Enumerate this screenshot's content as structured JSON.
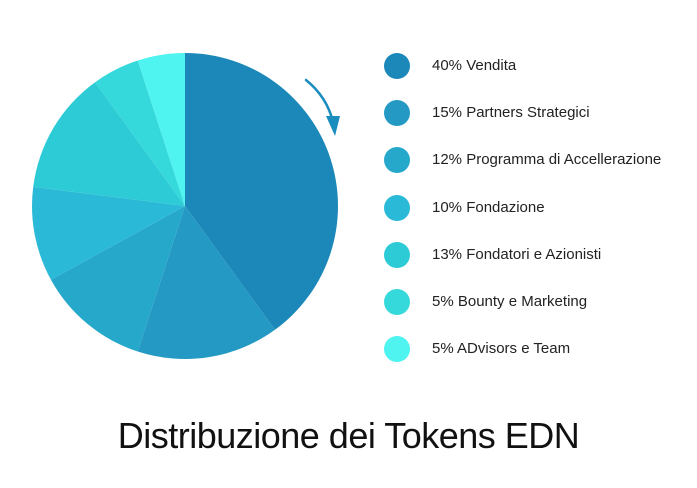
{
  "chart_data": {
    "type": "pie",
    "title": "Distribuzione dei Tokens EDN",
    "direction": "clockwise",
    "slices": [
      {
        "label": "40% Vendita",
        "value": 40,
        "color": "#1c88b9"
      },
      {
        "label": "15% Partners Strategici",
        "value": 15,
        "color": "#2399c3"
      },
      {
        "label": "12% Programma di Accellerazione",
        "value": 12,
        "color": "#26a8cb"
      },
      {
        "label": "10% Fondazione",
        "value": 10,
        "color": "#2ab9d6"
      },
      {
        "label": "13% Fondatori e Azionisti",
        "value": 13,
        "color": "#2ccbd5"
      },
      {
        "label": "5% Bounty e Marketing",
        "value": 5,
        "color": "#36d9db"
      },
      {
        "label": "5% ADvisors e Team",
        "value": 5,
        "color": "#4ff3ef"
      }
    ]
  },
  "arrow_color": "#1a8cbe"
}
